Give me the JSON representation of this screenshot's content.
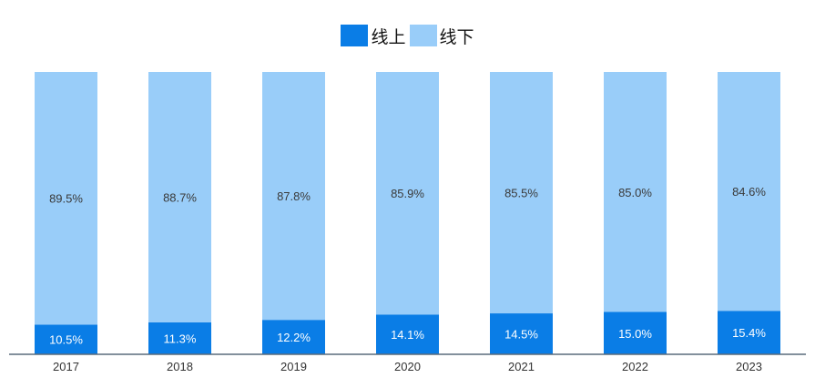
{
  "chart_data": {
    "type": "bar",
    "stacked": true,
    "categories": [
      "2017",
      "2018",
      "2019",
      "2020",
      "2021",
      "2022",
      "2023"
    ],
    "series": [
      {
        "name": "线上",
        "values": [
          10.5,
          11.3,
          12.2,
          14.1,
          14.5,
          15.0,
          15.4
        ],
        "labels": [
          "10.5%",
          "11.3%",
          "12.2%",
          "14.1%",
          "14.5%",
          "15.0%",
          "15.4%"
        ],
        "color": "#0a7de6"
      },
      {
        "name": "线下",
        "values": [
          89.5,
          88.7,
          87.8,
          85.9,
          85.5,
          85.0,
          84.6
        ],
        "labels": [
          "89.5%",
          "88.7%",
          "87.8%",
          "85.9%",
          "85.5%",
          "85.0%",
          "84.6%"
        ],
        "color": "#99cdf9"
      }
    ],
    "title": "",
    "xlabel": "",
    "ylabel": "",
    "ylim": [
      0,
      100
    ],
    "grid": false,
    "legend_position": "top-center"
  }
}
